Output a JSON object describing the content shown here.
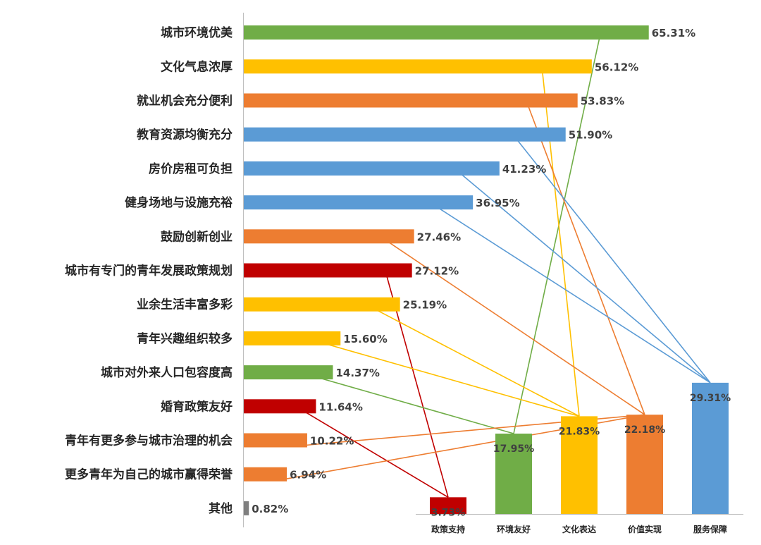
{
  "chart_data": [
    {
      "type": "bar",
      "orientation": "horizontal",
      "categories": [
        "城市环境优美",
        "文化气息浓厚",
        "就业机会充分便利",
        "教育资源均衡充分",
        "房价房租可负担",
        "健身场地与设施充裕",
        "鼓励创新创业",
        "城市有专门的青年发展政策规划",
        "业余生活丰富多彩",
        "青年兴趣组织较多",
        "城市对外来人口包容度高",
        "婚育政策友好",
        "青年有更多参与城市治理的机会",
        "更多青年为自己的城市赢得荣誉",
        "其他"
      ],
      "values": [
        65.31,
        56.12,
        53.83,
        51.9,
        41.23,
        36.95,
        27.46,
        27.12,
        25.19,
        15.6,
        14.37,
        11.64,
        10.22,
        6.94,
        0.82
      ],
      "value_labels": [
        "65.31%",
        "56.12%",
        "53.83%",
        "51.90%",
        "41.23%",
        "36.95%",
        "27.46%",
        "27.12%",
        "25.19%",
        "15.60%",
        "14.37%",
        "11.64%",
        "10.22%",
        "6.94%",
        "0.82%"
      ],
      "groups": [
        "环境友好",
        "文化表达",
        "价值实现",
        "服务保障",
        "服务保障",
        "服务保障",
        "价值实现",
        "政策支持",
        "文化表达",
        "文化表达",
        "环境友好",
        "政策支持",
        "价值实现",
        "价值实现",
        "其他"
      ],
      "colors": [
        "#70AD47",
        "#FFC000",
        "#ED7D31",
        "#5B9BD5",
        "#5B9BD5",
        "#5B9BD5",
        "#ED7D31",
        "#C00000",
        "#FFC000",
        "#FFC000",
        "#70AD47",
        "#C00000",
        "#ED7D31",
        "#ED7D31",
        "#7F7F7F"
      ],
      "xlim": [
        0,
        70
      ],
      "grid": false
    },
    {
      "type": "bar",
      "orientation": "vertical",
      "categories": [
        "政策支持",
        "环境友好",
        "文化表达",
        "价值实现",
        "服务保障"
      ],
      "values": [
        3.73,
        17.95,
        21.83,
        22.18,
        29.31
      ],
      "value_labels": [
        "3.73%",
        "17.95%",
        "21.83%",
        "22.18%",
        "29.31%"
      ],
      "colors": [
        "#C00000",
        "#70AD47",
        "#FFC000",
        "#ED7D31",
        "#5B9BD5"
      ],
      "ylim": [
        0,
        40
      ],
      "grid": false
    }
  ]
}
